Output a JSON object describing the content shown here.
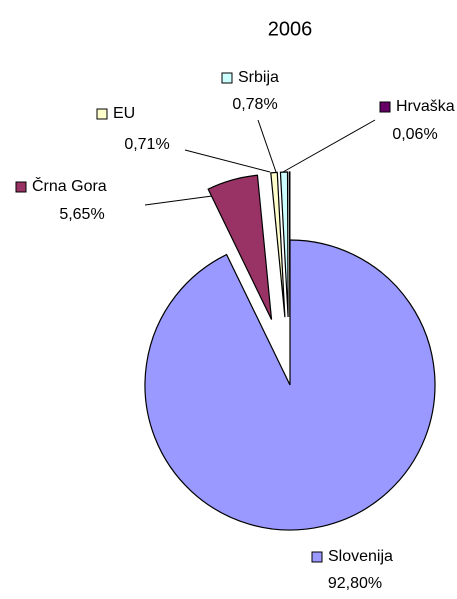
{
  "chart_data": {
    "type": "pie",
    "title": "2006",
    "categories": [
      "Slovenija",
      "Črna Gora",
      "EU",
      "Srbija",
      "Hrvaška"
    ],
    "values": [
      92.8,
      5.65,
      0.71,
      0.78,
      0.06
    ],
    "value_labels": [
      "92,80%",
      "5,65%",
      "0,71%",
      "0,78%",
      "0,06%"
    ],
    "colors": [
      "#9999ff",
      "#993366",
      "#ffffcc",
      "#ccffff",
      "#660066"
    ]
  }
}
